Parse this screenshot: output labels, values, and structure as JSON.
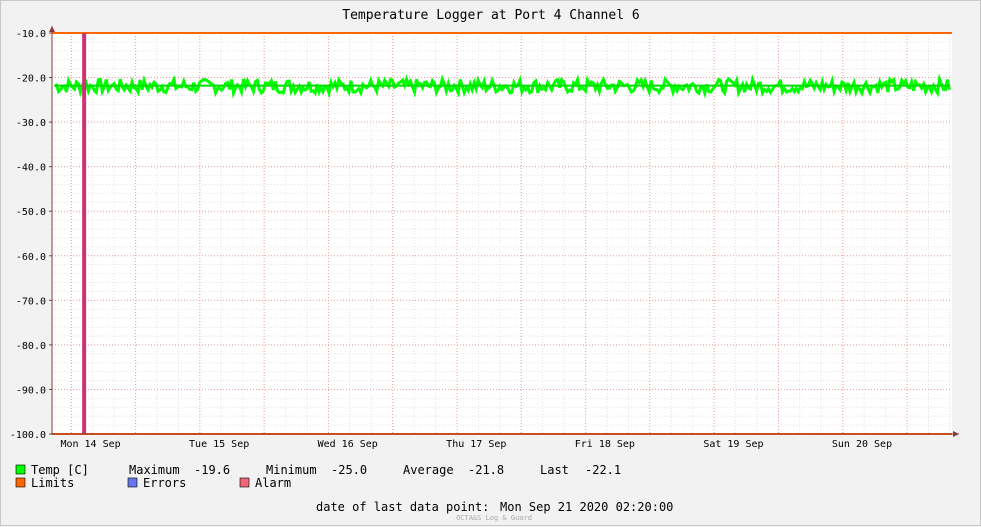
{
  "chart_data": {
    "type": "line",
    "title": "Temperature Logger at Port 4 Channel 6",
    "ylim": [
      -100.0,
      -10.0
    ],
    "y_ticks": [
      "-10.0",
      "-20.0",
      "-30.0",
      "-40.0",
      "-50.0",
      "-60.0",
      "-70.0",
      "-80.0",
      "-90.0",
      "-100.0"
    ],
    "y_tick_values": [
      -10,
      -20,
      -30,
      -40,
      -50,
      -60,
      -70,
      -80,
      -90,
      -100
    ],
    "x_categories": [
      "Mon 14 Sep",
      "Tue 15 Sep",
      "Wed 16 Sep",
      "Thu 17 Sep",
      "Fri 18 Sep",
      "Sat 19 Sep",
      "Sun 20 Sep"
    ],
    "x_range_days": [
      -0.15,
      6.85
    ],
    "series": [
      {
        "name": "Temp [C]",
        "color": "#00ff00",
        "mean": -21.8,
        "max": -19.6,
        "min": -25.0,
        "last": -22.1,
        "band": [
          -23.5,
          -20.3
        ]
      }
    ],
    "limits": {
      "name": "Limits",
      "color": "#ff6600",
      "upper": -10.0,
      "lower": -100.0
    },
    "alarm_marker": {
      "day": 0.1,
      "color": "#cc3377"
    },
    "grid": true,
    "legend_position": "bottom-left"
  },
  "legend": {
    "temp": {
      "label": "Temp [C]",
      "color": "#00ff00"
    },
    "stats": {
      "max_label": "Maximum",
      "max_value": "-19.6",
      "min_label": "Minimum",
      "min_value": "-25.0",
      "avg_label": "Average",
      "avg_value": "-21.8",
      "last_label": "Last",
      "last_value": "-22.1"
    },
    "limits": {
      "label": "Limits",
      "color": "#ff6600"
    },
    "errors": {
      "label": "Errors",
      "color": "#6677ee"
    },
    "alarm": {
      "label": "Alarm",
      "color": "#ee6677"
    }
  },
  "footer": {
    "last_point_label": "date of last data point:",
    "last_point_value": "Mon Sep 21 2020 02:20:00",
    "watermark": "OCTA&S Log & Guard"
  }
}
